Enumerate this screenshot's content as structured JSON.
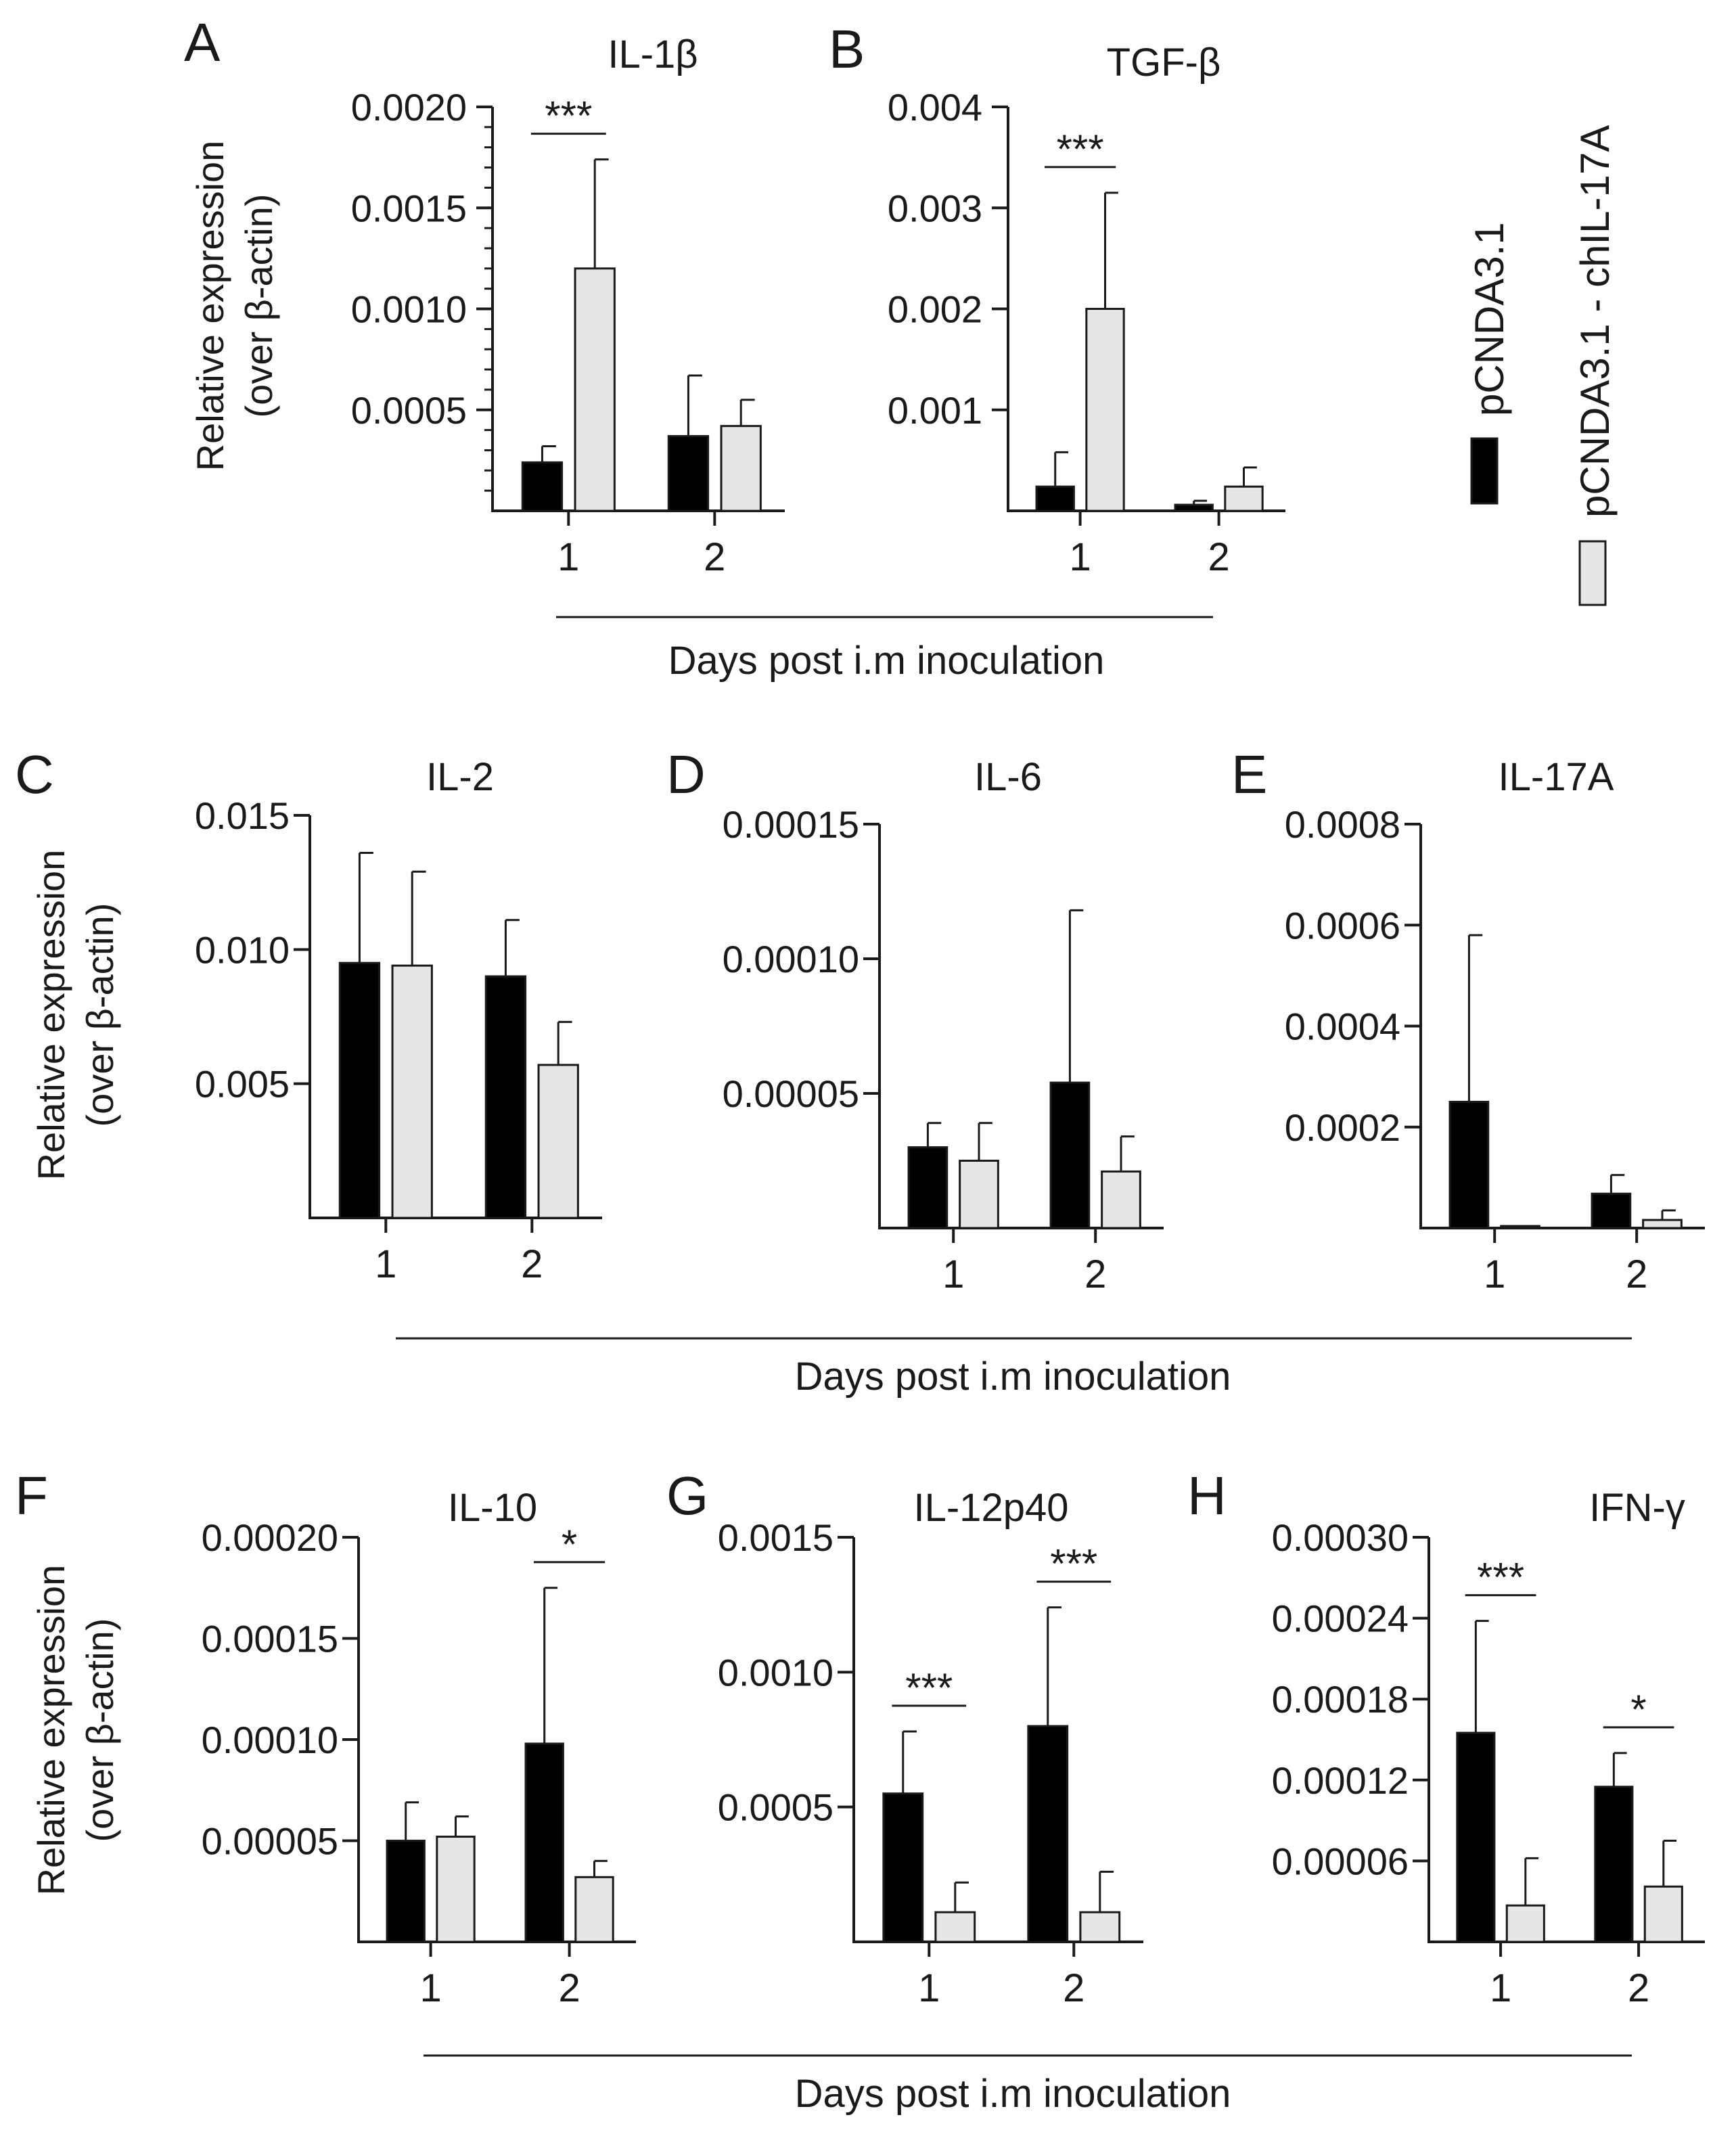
{
  "figure": {
    "ylabel_line1": "Relative expression",
    "ylabel_line2": "(over β-actin)",
    "shared_xlabel": "Days post i.m inoculation",
    "legend": [
      {
        "label": "pCNDA3.1",
        "color": "#000000"
      },
      {
        "label": "pCNDA3.1 - chIL-17A",
        "color": "#e6e6e6"
      }
    ]
  },
  "chart_data": [
    {
      "panel": "A",
      "type": "bar",
      "title": "IL-1β",
      "categories": [
        "1",
        "2"
      ],
      "yticks": [
        "0.0020",
        "0.0015",
        "0.0010",
        "0.0005"
      ],
      "ylim": [
        0,
        0.002
      ],
      "series": [
        {
          "name": "pCNDA3.1",
          "values": [
            0.00024,
            0.00037
          ],
          "errors": [
            8e-05,
            0.0003
          ]
        },
        {
          "name": "pCNDA3.1 - chIL-17A",
          "values": [
            0.0012,
            0.00042
          ],
          "errors": [
            0.00054,
            0.00013
          ]
        }
      ],
      "significance": [
        {
          "day": "1",
          "label": "***"
        }
      ]
    },
    {
      "panel": "B",
      "type": "bar",
      "title": "TGF-β",
      "categories": [
        "1",
        "2"
      ],
      "yticks": [
        "0.004",
        "0.003",
        "0.002",
        "0.001"
      ],
      "ylim": [
        0,
        0.004
      ],
      "series": [
        {
          "name": "pCNDA3.1",
          "values": [
            0.00024,
            6e-05
          ],
          "errors": [
            0.00034,
            4e-05
          ]
        },
        {
          "name": "pCNDA3.1 - chIL-17A",
          "values": [
            0.002,
            0.00024
          ],
          "errors": [
            0.00115,
            0.00019
          ]
        }
      ],
      "significance": [
        {
          "day": "1",
          "label": "***"
        }
      ]
    },
    {
      "panel": "C",
      "type": "bar",
      "title": "IL-2",
      "categories": [
        "1",
        "2"
      ],
      "yticks": [
        "0.015",
        "0.010",
        "0.005"
      ],
      "ylim": [
        0,
        0.015
      ],
      "series": [
        {
          "name": "pCNDA3.1",
          "values": [
            0.0095,
            0.009
          ],
          "errors": [
            0.0041,
            0.0021
          ]
        },
        {
          "name": "pCNDA3.1 - chIL-17A",
          "values": [
            0.0094,
            0.0057
          ],
          "errors": [
            0.0035,
            0.0016
          ]
        }
      ],
      "significance": []
    },
    {
      "panel": "D",
      "type": "bar",
      "title": "IL-6",
      "categories": [
        "1",
        "2"
      ],
      "yticks": [
        "0.00015",
        "0.00010",
        "0.00005"
      ],
      "ylim": [
        0,
        0.00015
      ],
      "series": [
        {
          "name": "pCNDA3.1",
          "values": [
            3e-05,
            5.4e-05
          ],
          "errors": [
            9e-06,
            6.4e-05
          ]
        },
        {
          "name": "pCNDA3.1 - chIL-17A",
          "values": [
            2.5e-05,
            2.1e-05
          ],
          "errors": [
            1.4e-05,
            1.3e-05
          ]
        }
      ],
      "significance": []
    },
    {
      "panel": "E",
      "type": "bar",
      "title": "IL-17A",
      "categories": [
        "1",
        "2"
      ],
      "yticks": [
        "0.0008",
        "0.0006",
        "0.0004",
        "0.0002"
      ],
      "ylim": [
        0,
        0.0008
      ],
      "series": [
        {
          "name": "pCNDA3.1",
          "values": [
            0.00025,
            6.8e-05
          ],
          "errors": [
            0.00033,
            3.7e-05
          ]
        },
        {
          "name": "pCNDA3.1 - chIL-17A",
          "values": [
            4e-06,
            1.6e-05
          ],
          "errors": [
            0.0,
            1.9e-05
          ]
        }
      ],
      "significance": []
    },
    {
      "panel": "F",
      "type": "bar",
      "title": "IL-10",
      "categories": [
        "1",
        "2"
      ],
      "yticks": [
        "0.00020",
        "0.00015",
        "0.00010",
        "0.00005"
      ],
      "ylim": [
        0,
        0.0002
      ],
      "series": [
        {
          "name": "pCNDA3.1",
          "values": [
            5e-05,
            9.8e-05
          ],
          "errors": [
            1.9e-05,
            7.7e-05
          ]
        },
        {
          "name": "pCNDA3.1 - chIL-17A",
          "values": [
            5.2e-05,
            3.2e-05
          ],
          "errors": [
            1e-05,
            8e-06
          ]
        }
      ],
      "significance": [
        {
          "day": "2",
          "label": "*"
        }
      ]
    },
    {
      "panel": "G",
      "type": "bar",
      "title": "IL-12p40",
      "categories": [
        "1",
        "2"
      ],
      "yticks": [
        "0.0015",
        "0.0010",
        "0.0005"
      ],
      "ylim": [
        0,
        0.0015
      ],
      "series": [
        {
          "name": "pCNDA3.1",
          "values": [
            0.00055,
            0.0008
          ],
          "errors": [
            0.00023,
            0.00044
          ]
        },
        {
          "name": "pCNDA3.1 - chIL-17A",
          "values": [
            0.00011,
            0.00011
          ],
          "errors": [
            0.00011,
            0.00015
          ]
        }
      ],
      "significance": [
        {
          "day": "1",
          "label": "***"
        },
        {
          "day": "2",
          "label": "***"
        }
      ]
    },
    {
      "panel": "H",
      "type": "bar",
      "title": "IFN-γ",
      "categories": [
        "1",
        "2"
      ],
      "yticks": [
        "0.00030",
        "0.00024",
        "0.00018",
        "0.00012",
        "0.00006"
      ],
      "ylim": [
        0,
        0.0003
      ],
      "series": [
        {
          "name": "pCNDA3.1",
          "values": [
            0.000155,
            0.000115
          ],
          "errors": [
            8.3e-05,
            2.5e-05
          ]
        },
        {
          "name": "pCNDA3.1 - chIL-17A",
          "values": [
            2.7e-05,
            4.1e-05
          ],
          "errors": [
            3.5e-05,
            3.4e-05
          ]
        }
      ],
      "significance": [
        {
          "day": "1",
          "label": "***"
        },
        {
          "day": "2",
          "label": "*"
        }
      ]
    }
  ]
}
